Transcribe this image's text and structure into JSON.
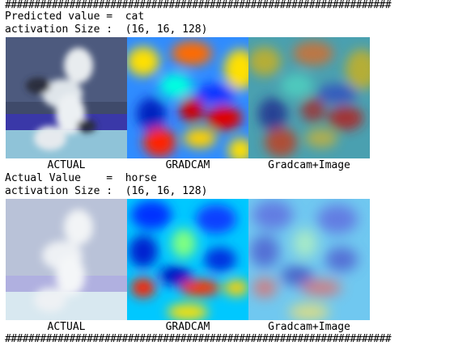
{
  "separator": "##################################################################",
  "block1": {
    "line1": "Predicted value =  cat",
    "line2": "activation Size :  (16, 16, 128)",
    "captions": [
      "ACTUAL",
      "GRADCAM",
      "Gradcam+Image"
    ]
  },
  "block2": {
    "line1": "Actual Value    =  horse",
    "line2": "activation Size :  (16, 16, 128)",
    "captions": [
      "ACTUAL",
      "GRADCAM",
      "Gradcam+Image"
    ]
  }
}
